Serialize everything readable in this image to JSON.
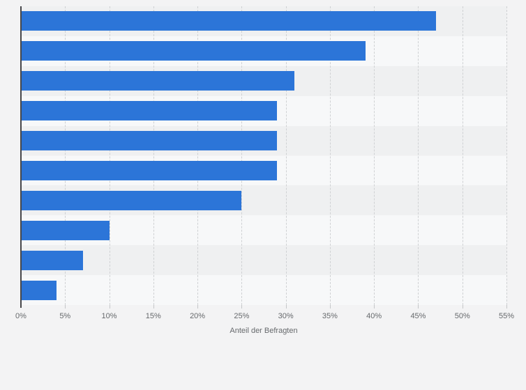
{
  "page": {
    "background_color": "#f3f3f4"
  },
  "chart_data": {
    "type": "bar",
    "orientation": "horizontal",
    "values": [
      47,
      39,
      31,
      29,
      29,
      29,
      25,
      10,
      7,
      4
    ],
    "value_unit": "%",
    "category_labels_visible": false,
    "xlabel": "Anteil der Befragten",
    "x_ticks": [
      "0%",
      "5%",
      "10%",
      "15%",
      "20%",
      "25%",
      "30%",
      "35%",
      "40%",
      "45%",
      "50%",
      "55%"
    ],
    "xlim": [
      0,
      55
    ],
    "x_tick_step": 5,
    "grid": "vertical-dashed",
    "legend": "none",
    "bar_color": "#2c75d8",
    "axis_line_color": "#47474a",
    "row_band_colors": [
      "#eff0f1",
      "#f7f8f9"
    ],
    "gridline_color": "#cfd1d3",
    "tick_label_color": "#66696c"
  }
}
